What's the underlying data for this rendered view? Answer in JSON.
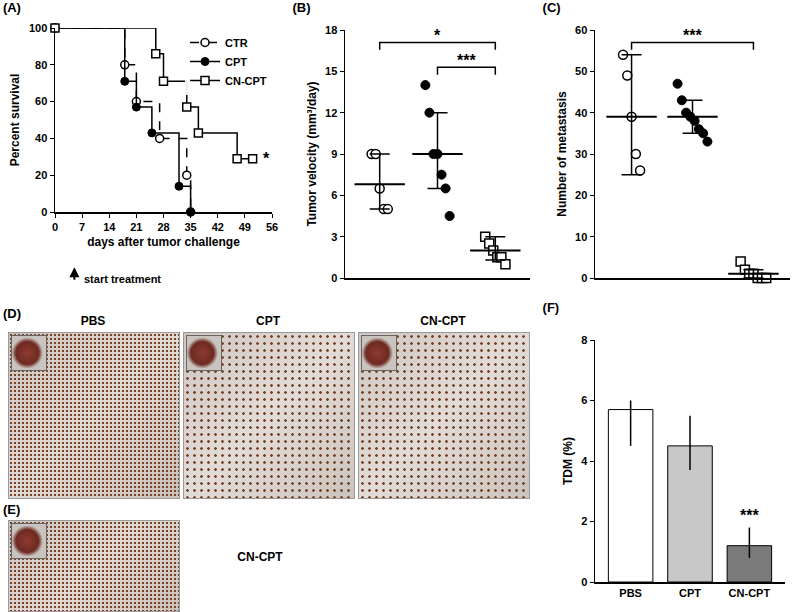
{
  "chart_data": [
    {
      "type": "step",
      "title": "(A)",
      "x_label": "days after tumor challenge",
      "y_label": "Percent survival",
      "xlim": [
        0,
        56
      ],
      "xticks": [
        0,
        7,
        14,
        21,
        28,
        35,
        42,
        49,
        56
      ],
      "ylim": [
        0,
        100
      ],
      "yticks": [
        0,
        20,
        40,
        60,
        80,
        100
      ],
      "legend": "top-right",
      "grid": false,
      "series": [
        {
          "name": "CTR",
          "color": "#000000",
          "marker": "open-circle",
          "line_style": "dash",
          "x": [
            0,
            18,
            21,
            27,
            34,
            35
          ],
          "values": [
            100,
            80,
            60,
            40,
            20,
            0
          ]
        },
        {
          "name": "CPT",
          "color": "#000000",
          "marker": "filled-circle",
          "line_style": "solid",
          "x": [
            0,
            18,
            21,
            25,
            32,
            35
          ],
          "values": [
            100,
            71,
            57,
            43,
            14,
            0
          ]
        },
        {
          "name": "CN-CPT",
          "color": "#000000",
          "marker": "open-square",
          "line_style": "solid",
          "x": [
            0,
            26,
            28,
            34,
            37,
            47,
            51
          ],
          "values": [
            100,
            86,
            71,
            57,
            43,
            29,
            29
          ]
        }
      ],
      "annotations": [
        {
          "text": "*",
          "series": "CN-CPT"
        },
        {
          "text": "start treatment",
          "x": 5
        }
      ]
    },
    {
      "type": "scatter",
      "title": "(B)",
      "y_label": "Tumor velocity (mm³/day)",
      "ylim": [
        0,
        18
      ],
      "yticks": [
        0,
        3,
        6,
        9,
        12,
        15,
        18
      ],
      "tick_labels": "y",
      "grid": false,
      "series": [
        {
          "color": "#000000",
          "marker": "open-circle",
          "values": [
            9,
            9,
            6.5,
            5,
            5
          ],
          "center": 6.8,
          "range": [
            5,
            9
          ]
        },
        {
          "color": "#000000",
          "marker": "filled-circle",
          "values": [
            14,
            12,
            9,
            9,
            7.5,
            6.5,
            4.5
          ],
          "center": 9,
          "range": [
            6.5,
            12
          ]
        },
        {
          "color": "#000000",
          "marker": "open-square",
          "values": [
            3,
            2.5,
            2,
            1.5,
            1.5,
            1
          ],
          "center": 2,
          "range": [
            1.3,
            3
          ]
        }
      ],
      "annotations": [
        {
          "text": "*",
          "from": 0,
          "to": 2
        },
        {
          "text": "***",
          "from": 1,
          "to": 2
        }
      ]
    },
    {
      "type": "scatter",
      "title": "(C)",
      "y_label": "Number of metastasis",
      "ylim": [
        0,
        60
      ],
      "yticks": [
        0,
        10,
        20,
        30,
        40,
        50,
        60
      ],
      "tick_labels": "y",
      "grid": false,
      "series": [
        {
          "color": "#000000",
          "marker": "open-circle",
          "values": [
            54,
            49,
            39,
            30,
            26
          ],
          "center": 39,
          "range": [
            25,
            54
          ]
        },
        {
          "color": "#000000",
          "marker": "filled-circle",
          "values": [
            47,
            43,
            40,
            39,
            38,
            36,
            35,
            33
          ],
          "center": 39,
          "range": [
            35,
            43
          ]
        },
        {
          "color": "#000000",
          "marker": "open-square",
          "values": [
            4,
            2,
            1,
            1,
            0,
            0,
            0
          ],
          "center": 1,
          "range": [
            0,
            2
          ]
        }
      ],
      "annotations": [
        {
          "text": "***",
          "from": 0,
          "to": 2
        }
      ]
    },
    {
      "type": "bar",
      "title": "(F)",
      "y_label": "TDM (%)",
      "categories": [
        "PBS",
        "CPT",
        "CN-CPT"
      ],
      "values": [
        5.7,
        4.5,
        1.2
      ],
      "error_low": [
        4.5,
        3.7,
        0.8
      ],
      "error_high": [
        6.0,
        5.5,
        1.8
      ],
      "colors": [
        "#ffffff",
        "#c8c8c8",
        "#7a7a7a"
      ],
      "ylim": [
        0,
        8
      ],
      "yticks": [
        0,
        2,
        4,
        6,
        8
      ],
      "grid": false,
      "annotations": [
        {
          "text": "***",
          "category": "CN-CPT"
        }
      ]
    }
  ],
  "image_panels": {
    "D": {
      "title": "(D)",
      "captions": [
        "PBS",
        "CPT",
        "CN-CPT"
      ]
    },
    "E": {
      "title": "(E)",
      "caption": "CN-CPT"
    }
  }
}
